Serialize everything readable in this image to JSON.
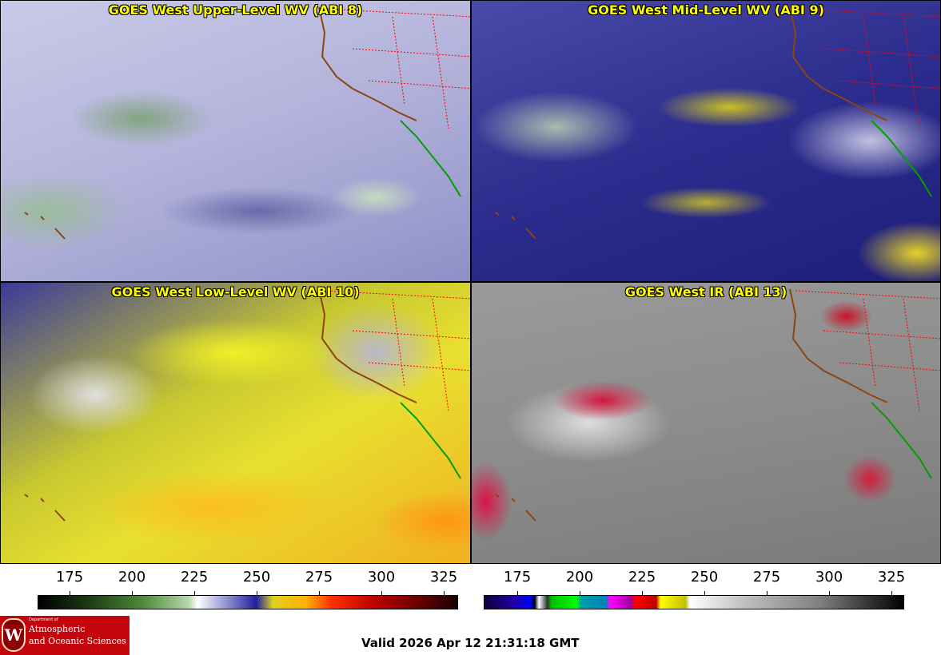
{
  "panels": [
    {
      "title": "GOES West Upper-Level WV (ABI 8)"
    },
    {
      "title": "GOES West Mid-Level WV (ABI 9)"
    },
    {
      "title": "GOES West Low-Level WV (ABI 10)"
    },
    {
      "title": "GOES West IR (ABI 13)"
    }
  ],
  "colorbars": [
    {
      "ticks": [
        "175",
        "200",
        "225",
        "250",
        "275",
        "300",
        "325"
      ]
    },
    {
      "ticks": [
        "175",
        "200",
        "225",
        "250",
        "275",
        "300",
        "325"
      ]
    }
  ],
  "logo": {
    "small": "Department of",
    "line1": "Atmospheric",
    "line2": "and Oceanic Sciences",
    "crest": "W"
  },
  "valid_time": "Valid 2026 Apr 12 21:31:18 GMT",
  "colors": {
    "title": "#ffff00",
    "state_lines": "#ff0000",
    "coastline": "#8b4513",
    "mexico_coast": "#00a000",
    "logo_red": "#c5050c"
  }
}
